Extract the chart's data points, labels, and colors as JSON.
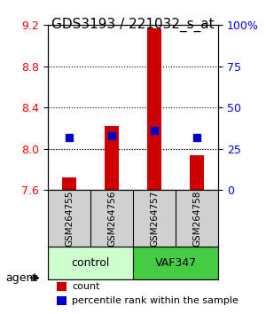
{
  "title": "GDS3193 / 221032_s_at",
  "samples": [
    "GSM264755",
    "GSM264756",
    "GSM264757",
    "GSM264758"
  ],
  "groups": [
    "control",
    "control",
    "VAF347",
    "VAF347"
  ],
  "group_colors": {
    "control": "#b3ffb3",
    "VAF347": "#66ff66"
  },
  "count_values": [
    7.72,
    8.22,
    9.17,
    7.94
  ],
  "percentile_values": [
    32,
    33,
    36,
    32
  ],
  "ylim_left": [
    7.6,
    9.2
  ],
  "ylim_right": [
    0,
    100
  ],
  "yticks_left": [
    7.6,
    8.0,
    8.4,
    8.8,
    9.2
  ],
  "yticks_right": [
    0,
    25,
    50,
    75,
    100
  ],
  "ytick_labels_right": [
    "0",
    "25",
    "50",
    "75",
    "100%"
  ],
  "bar_color": "#cc0000",
  "dot_color": "#0000cc",
  "bar_bottom": 7.6,
  "grid_ticks": [
    8.0,
    8.4,
    8.8
  ],
  "legend_count_label": "count",
  "legend_pct_label": "percentile rank within the sample",
  "agent_label": "agent",
  "control_label": "control",
  "vaf_label": "VAF347"
}
